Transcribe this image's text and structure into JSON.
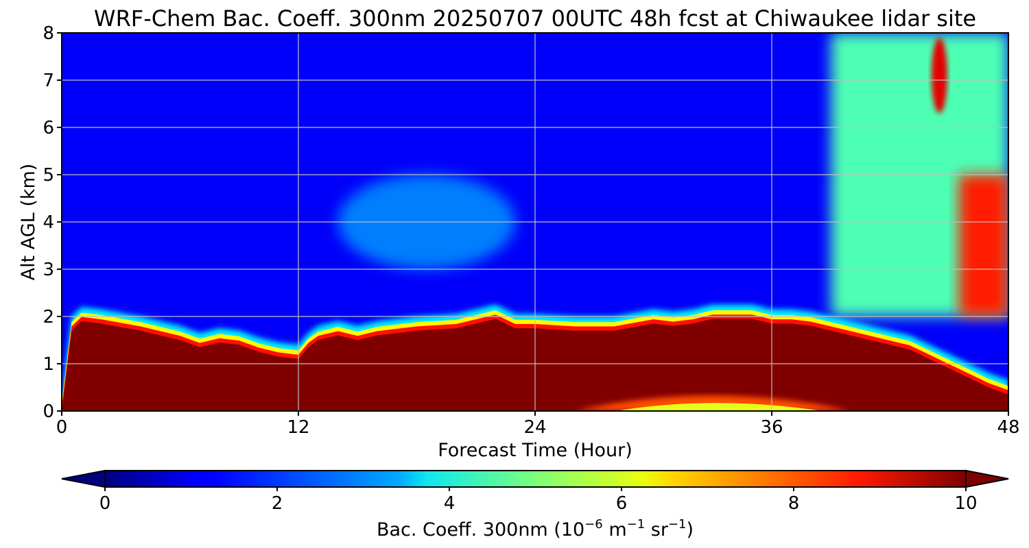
{
  "chart_data": {
    "type": "heatmap",
    "title": "WRF-Chem Bac. Coeff. 300nm  20250707 00UTC 48h fcst at Chiwaukee lidar site",
    "xlabel": "Forecast Time (Hour)",
    "ylabel": "Alt AGL (km)",
    "xlim": [
      0,
      48
    ],
    "ylim": [
      0,
      8
    ],
    "xticks": [
      "0",
      "12",
      "24",
      "36",
      "48"
    ],
    "yticks": [
      "0",
      "1",
      "2",
      "3",
      "4",
      "5",
      "6",
      "7",
      "8"
    ],
    "grid": true,
    "colormap": "jet",
    "colorbar": {
      "label": "Bac. Coeff. 300nm  (10",
      "label_exp1": "−6",
      "label_mid": " m",
      "label_exp2": "−1",
      "label_mid2": " sr",
      "label_exp3": "−1",
      "label_end": ")",
      "range": [
        0,
        10
      ],
      "ticks": [
        "0",
        "2",
        "4",
        "6",
        "8",
        "10"
      ],
      "extend": "both",
      "units_note": "10^-6 m^-1 sr^-1"
    },
    "x": [
      0,
      0.5,
      1,
      2,
      4,
      6,
      7,
      8,
      9,
      10,
      11,
      12,
      12.5,
      13,
      14,
      15,
      16,
      18,
      20,
      22,
      23,
      24,
      26,
      28,
      30,
      31,
      32,
      33,
      34,
      35,
      36,
      37,
      38,
      39,
      40,
      41,
      42,
      43,
      44,
      45,
      46,
      47,
      48
    ],
    "boundary_layer_top_km": [
      0.0,
      1.7,
      1.9,
      1.85,
      1.7,
      1.5,
      1.35,
      1.45,
      1.4,
      1.25,
      1.15,
      1.1,
      1.35,
      1.5,
      1.6,
      1.5,
      1.6,
      1.7,
      1.75,
      1.95,
      1.75,
      1.75,
      1.7,
      1.7,
      1.85,
      1.8,
      1.85,
      1.95,
      1.95,
      1.95,
      1.85,
      1.85,
      1.8,
      1.7,
      1.6,
      1.5,
      1.4,
      1.3,
      1.1,
      0.9,
      0.7,
      0.5,
      0.35
    ],
    "near_surface_minimum": {
      "x_range_hours": [
        26,
        40
      ],
      "altitude_range_km": [
        0,
        0.4
      ],
      "value": 6.0
    },
    "upper_plume": {
      "x_range_hours": [
        39,
        48
      ],
      "altitude_range_km": [
        2.0,
        8.0
      ],
      "value": 4.5
    },
    "upper_plume_core": {
      "x_hours": 44.5,
      "altitude_range_km": [
        6.3,
        7.9
      ],
      "value": 9.0
    },
    "free_troposphere_value": 1.2,
    "mid_level_enhancement": {
      "x_range_hours": [
        14,
        23
      ],
      "altitude_range_km": [
        3.0,
        5.0
      ],
      "value": 2.8
    }
  }
}
